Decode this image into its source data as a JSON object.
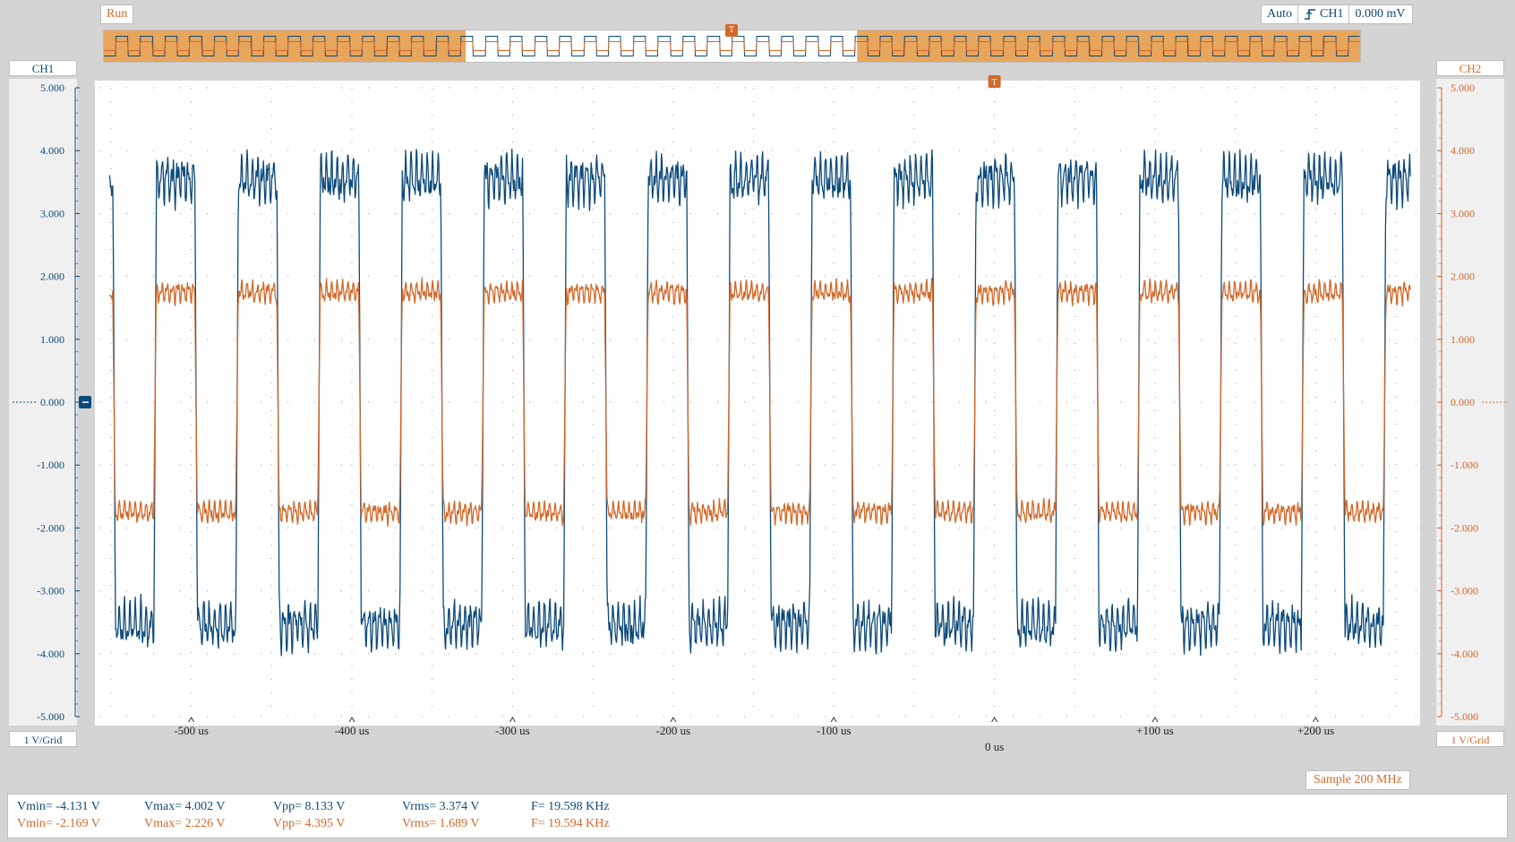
{
  "toolbar": {
    "run_label": "Run"
  },
  "trigger": {
    "mode": "Auto",
    "source": "CH1",
    "level": "0.000 mV",
    "icon": "rising-edge-icon"
  },
  "channels": {
    "ch1": {
      "label": "CH1",
      "scale": "1 V/Grid",
      "color": "#0d4a7a"
    },
    "ch2": {
      "label": "CH2",
      "scale": "1 V/Grid",
      "color": "#d2692a"
    }
  },
  "sample_rate": "Sample 200 MHz",
  "measurements": {
    "ch1": {
      "vmin": "Vmin= -4.131 V",
      "vmax": "Vmax= 4.002 V",
      "vpp": "Vpp= 8.133 V",
      "vrms": "Vrms= 3.374 V",
      "freq": "F= 19.598 KHz"
    },
    "ch2": {
      "vmin": "Vmin= -2.169 V",
      "vmax": "Vmax= 2.226 V",
      "vpp": "Vpp= 4.395 V",
      "vrms": "Vrms= 1.689 V",
      "freq": "F= 19.594 KHz"
    }
  },
  "chart_data": {
    "type": "line",
    "x_unit": "us",
    "xlim": [
      -560,
      265
    ],
    "ylim": [
      -5,
      5
    ],
    "y_ticks": [
      "5.000",
      "4.000",
      "3.000",
      "2.000",
      "1.000",
      "0.000",
      "-1.000",
      "-2.000",
      "-3.000",
      "-4.000",
      "-5.000"
    ],
    "x_ticks": [
      {
        "value": -500,
        "label": "-500 us"
      },
      {
        "value": -400,
        "label": "-400 us"
      },
      {
        "value": -300,
        "label": "-300 us"
      },
      {
        "value": -200,
        "label": "-200 us"
      },
      {
        "value": -100,
        "label": "-100 us"
      },
      {
        "value": 0,
        "label": "0 us"
      },
      {
        "value": 100,
        "label": "+100 us"
      },
      {
        "value": 200,
        "label": "+200 us"
      }
    ],
    "grid": true,
    "series": [
      {
        "name": "CH1",
        "color": "#0d4a7a",
        "waveform": "square",
        "frequency_khz": 19.598,
        "amplitude_v": 4.0,
        "vmin": -4.131,
        "vmax": 4.002
      },
      {
        "name": "CH2",
        "color": "#d2692a",
        "waveform": "square",
        "frequency_khz": 19.594,
        "amplitude_v": 2.0,
        "vmin": -2.169,
        "vmax": 2.226
      }
    ]
  }
}
